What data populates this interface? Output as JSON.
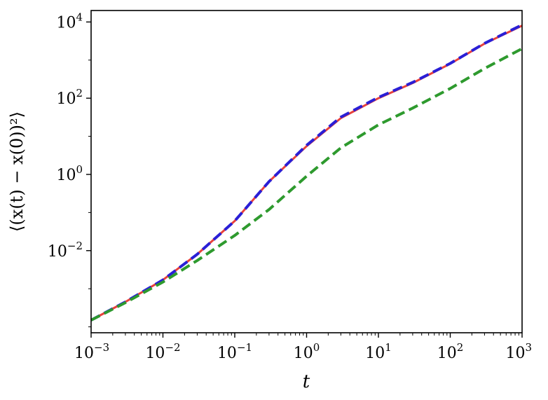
{
  "chart_data": {
    "type": "line",
    "xscale": "log",
    "yscale": "log",
    "xlabel": "t",
    "ylabel": "⟨(x(t) − x(0))²⟩",
    "xlim": [
      0.001,
      1000
    ],
    "ylim": [
      7e-05,
      20000
    ],
    "x_ticks": [
      {
        "value": 0.001,
        "base": "10",
        "exp": "−3"
      },
      {
        "value": 0.01,
        "base": "10",
        "exp": "−2"
      },
      {
        "value": 0.1,
        "base": "10",
        "exp": "−1"
      },
      {
        "value": 1,
        "base": "10",
        "exp": "0"
      },
      {
        "value": 10,
        "base": "10",
        "exp": "1"
      },
      {
        "value": 100,
        "base": "10",
        "exp": "2"
      },
      {
        "value": 1000,
        "base": "10",
        "exp": "3"
      }
    ],
    "y_ticks": [
      {
        "value": 0.01,
        "base": "10",
        "exp": "−2"
      },
      {
        "value": 1,
        "base": "10",
        "exp": "0"
      },
      {
        "value": 100,
        "base": "10",
        "exp": "2"
      },
      {
        "value": 10000,
        "base": "10",
        "exp": "4"
      }
    ],
    "x": [
      0.001,
      0.003,
      0.01,
      0.03,
      0.1,
      0.3,
      1,
      3,
      10,
      30,
      100,
      300,
      1000
    ],
    "series": [
      {
        "color": "#e8413c",
        "style": "solid",
        "values": [
          0.00015,
          0.00045,
          0.0017,
          0.008,
          0.06,
          0.65,
          5.5,
          30,
          100,
          250,
          800,
          2700,
          8000
        ]
      },
      {
        "color": "#2a1fd6",
        "style": "dashed",
        "values": [
          0.00015,
          0.00045,
          0.0017,
          0.008,
          0.06,
          0.65,
          5.8,
          32,
          105,
          260,
          820,
          2750,
          8400
        ]
      },
      {
        "color": "#2e9a2e",
        "style": "dashed",
        "values": [
          0.00015,
          0.00043,
          0.0015,
          0.0055,
          0.025,
          0.12,
          0.9,
          5,
          20,
          55,
          180,
          600,
          2000
        ]
      }
    ],
    "grid": false,
    "legend": "none"
  }
}
